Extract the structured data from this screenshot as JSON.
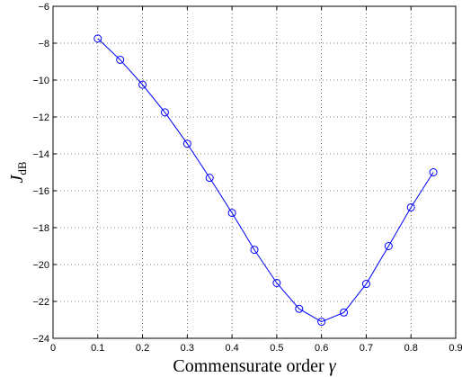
{
  "chart_data": {
    "type": "line",
    "title": "",
    "xlabel": "Commensurate order γ",
    "ylabel": "J_dB",
    "xlabel_text": "Commensurate order ",
    "xlabel_symbol": "γ",
    "ylabel_main": "J",
    "ylabel_sub": "dB",
    "xlim": [
      0,
      0.9
    ],
    "ylim": [
      -24,
      -6
    ],
    "xticks": [
      0,
      0.1,
      0.2,
      0.3,
      0.4,
      0.5,
      0.6,
      0.7,
      0.8,
      0.9
    ],
    "xtick_labels": [
      "0",
      "0.1",
      "0.2",
      "0.3",
      "0.4",
      "0.5",
      "0.6",
      "0.7",
      "0.8",
      "0.9"
    ],
    "yticks": [
      -24,
      -22,
      -20,
      -18,
      -16,
      -14,
      -12,
      -10,
      -8,
      -6
    ],
    "ytick_labels": [
      "−24",
      "−22",
      "−20",
      "−18",
      "−16",
      "−14",
      "−12",
      "−10",
      "−8",
      "−6"
    ],
    "grid": true,
    "legend": "none",
    "series": [
      {
        "color": "#0000ff",
        "marker": "circle",
        "x": [
          0.1,
          0.15,
          0.2,
          0.25,
          0.3,
          0.35,
          0.4,
          0.45,
          0.5,
          0.55,
          0.6,
          0.65,
          0.7,
          0.75,
          0.8,
          0.85
        ],
        "y": [
          -7.75,
          -8.9,
          -10.25,
          -11.75,
          -13.45,
          -15.3,
          -17.2,
          -19.2,
          -21.0,
          -22.4,
          -23.1,
          -22.6,
          -21.05,
          -19.0,
          -16.9,
          -15.0
        ]
      }
    ]
  }
}
